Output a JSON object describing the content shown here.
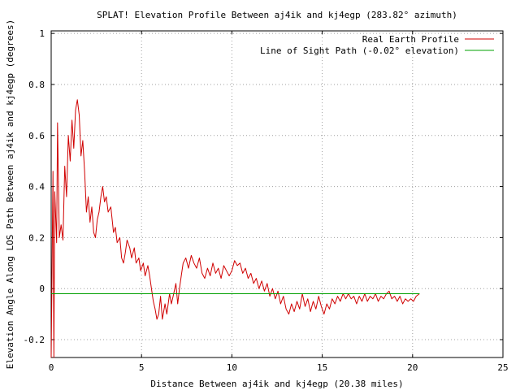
{
  "chart_data": {
    "type": "line",
    "title": "SPLAT! Elevation Profile Between aj4ik and kj4egp (283.82° azimuth)",
    "xlabel": "Distance Between aj4ik and kj4egp (20.38 miles)",
    "ylabel": "Elevation Angle Along LOS Path Between aj4ik and kj4egp (degrees)",
    "xlim": [
      0,
      25
    ],
    "ylim": [
      -0.27,
      1.01
    ],
    "x_ticks": [
      "0",
      "5",
      "10",
      "15",
      "20",
      "25"
    ],
    "y_ticks": [
      "-0.2",
      "0",
      "0.2",
      "0.4",
      "0.6",
      "0.8",
      "1"
    ],
    "grid": true,
    "legend": "top-right",
    "series": [
      {
        "name": "Real Earth Profile",
        "color": "#d00000",
        "points": [
          [
            0.0,
            -0.27
          ],
          [
            0.1,
            0.46
          ],
          [
            0.15,
            -0.27
          ],
          [
            0.2,
            0.38
          ],
          [
            0.3,
            0.18
          ],
          [
            0.35,
            0.65
          ],
          [
            0.45,
            0.2
          ],
          [
            0.55,
            0.25
          ],
          [
            0.65,
            0.19
          ],
          [
            0.75,
            0.48
          ],
          [
            0.85,
            0.36
          ],
          [
            0.95,
            0.6
          ],
          [
            1.05,
            0.5
          ],
          [
            1.15,
            0.66
          ],
          [
            1.25,
            0.55
          ],
          [
            1.35,
            0.7
          ],
          [
            1.45,
            0.74
          ],
          [
            1.55,
            0.68
          ],
          [
            1.65,
            0.52
          ],
          [
            1.75,
            0.58
          ],
          [
            1.85,
            0.46
          ],
          [
            1.95,
            0.3
          ],
          [
            2.05,
            0.36
          ],
          [
            2.15,
            0.26
          ],
          [
            2.25,
            0.32
          ],
          [
            2.35,
            0.22
          ],
          [
            2.45,
            0.2
          ],
          [
            2.55,
            0.27
          ],
          [
            2.65,
            0.3
          ],
          [
            2.75,
            0.36
          ],
          [
            2.85,
            0.4
          ],
          [
            2.95,
            0.34
          ],
          [
            3.05,
            0.36
          ],
          [
            3.15,
            0.3
          ],
          [
            3.3,
            0.32
          ],
          [
            3.45,
            0.22
          ],
          [
            3.55,
            0.24
          ],
          [
            3.65,
            0.18
          ],
          [
            3.8,
            0.2
          ],
          [
            3.9,
            0.12
          ],
          [
            4.0,
            0.1
          ],
          [
            4.1,
            0.14
          ],
          [
            4.2,
            0.19
          ],
          [
            4.35,
            0.16
          ],
          [
            4.45,
            0.12
          ],
          [
            4.6,
            0.16
          ],
          [
            4.7,
            0.1
          ],
          [
            4.85,
            0.12
          ],
          [
            4.95,
            0.07
          ],
          [
            5.1,
            0.1
          ],
          [
            5.2,
            0.05
          ],
          [
            5.35,
            0.09
          ],
          [
            5.45,
            0.05
          ],
          [
            5.55,
            0.0
          ],
          [
            5.65,
            -0.05
          ],
          [
            5.75,
            -0.08
          ],
          [
            5.85,
            -0.12
          ],
          [
            5.95,
            -0.1
          ],
          [
            6.05,
            -0.03
          ],
          [
            6.15,
            -0.12
          ],
          [
            6.3,
            -0.06
          ],
          [
            6.4,
            -0.1
          ],
          [
            6.55,
            -0.02
          ],
          [
            6.65,
            -0.06
          ],
          [
            6.75,
            -0.03
          ],
          [
            6.9,
            0.02
          ],
          [
            7.0,
            -0.06
          ],
          [
            7.1,
            0.0
          ],
          [
            7.2,
            0.05
          ],
          [
            7.3,
            0.1
          ],
          [
            7.45,
            0.12
          ],
          [
            7.6,
            0.08
          ],
          [
            7.75,
            0.13
          ],
          [
            7.9,
            0.1
          ],
          [
            8.05,
            0.08
          ],
          [
            8.2,
            0.12
          ],
          [
            8.35,
            0.06
          ],
          [
            8.5,
            0.04
          ],
          [
            8.65,
            0.08
          ],
          [
            8.8,
            0.05
          ],
          [
            8.95,
            0.1
          ],
          [
            9.1,
            0.06
          ],
          [
            9.25,
            0.08
          ],
          [
            9.4,
            0.04
          ],
          [
            9.55,
            0.09
          ],
          [
            9.7,
            0.07
          ],
          [
            9.85,
            0.05
          ],
          [
            10.0,
            0.07
          ],
          [
            10.15,
            0.11
          ],
          [
            10.3,
            0.09
          ],
          [
            10.45,
            0.1
          ],
          [
            10.6,
            0.06
          ],
          [
            10.75,
            0.08
          ],
          [
            10.9,
            0.04
          ],
          [
            11.05,
            0.06
          ],
          [
            11.2,
            0.02
          ],
          [
            11.35,
            0.04
          ],
          [
            11.5,
            0.0
          ],
          [
            11.65,
            0.03
          ],
          [
            11.8,
            -0.01
          ],
          [
            11.95,
            0.02
          ],
          [
            12.1,
            -0.03
          ],
          [
            12.25,
            0.0
          ],
          [
            12.4,
            -0.04
          ],
          [
            12.55,
            -0.01
          ],
          [
            12.7,
            -0.06
          ],
          [
            12.85,
            -0.03
          ],
          [
            13.0,
            -0.08
          ],
          [
            13.15,
            -0.1
          ],
          [
            13.3,
            -0.06
          ],
          [
            13.45,
            -0.09
          ],
          [
            13.6,
            -0.05
          ],
          [
            13.75,
            -0.08
          ],
          [
            13.9,
            -0.02
          ],
          [
            14.05,
            -0.07
          ],
          [
            14.2,
            -0.04
          ],
          [
            14.35,
            -0.09
          ],
          [
            14.5,
            -0.05
          ],
          [
            14.65,
            -0.08
          ],
          [
            14.8,
            -0.03
          ],
          [
            14.95,
            -0.07
          ],
          [
            15.1,
            -0.1
          ],
          [
            15.25,
            -0.06
          ],
          [
            15.4,
            -0.08
          ],
          [
            15.55,
            -0.04
          ],
          [
            15.7,
            -0.06
          ],
          [
            15.85,
            -0.03
          ],
          [
            16.0,
            -0.05
          ],
          [
            16.15,
            -0.02
          ],
          [
            16.3,
            -0.04
          ],
          [
            16.45,
            -0.02
          ],
          [
            16.6,
            -0.04
          ],
          [
            16.75,
            -0.03
          ],
          [
            16.9,
            -0.06
          ],
          [
            17.05,
            -0.03
          ],
          [
            17.2,
            -0.05
          ],
          [
            17.35,
            -0.02
          ],
          [
            17.5,
            -0.05
          ],
          [
            17.65,
            -0.03
          ],
          [
            17.8,
            -0.04
          ],
          [
            17.95,
            -0.02
          ],
          [
            18.1,
            -0.05
          ],
          [
            18.25,
            -0.03
          ],
          [
            18.4,
            -0.04
          ],
          [
            18.55,
            -0.02
          ],
          [
            18.7,
            -0.01
          ],
          [
            18.85,
            -0.04
          ],
          [
            19.0,
            -0.03
          ],
          [
            19.15,
            -0.05
          ],
          [
            19.3,
            -0.03
          ],
          [
            19.45,
            -0.06
          ],
          [
            19.6,
            -0.04
          ],
          [
            19.75,
            -0.05
          ],
          [
            19.9,
            -0.04
          ],
          [
            20.05,
            -0.05
          ],
          [
            20.2,
            -0.03
          ],
          [
            20.38,
            -0.02
          ]
        ]
      },
      {
        "name": "Line of Sight Path (-0.02° elevation)",
        "color": "#00a000",
        "points": [
          [
            0.0,
            -0.02
          ],
          [
            20.38,
            -0.02
          ]
        ]
      }
    ]
  }
}
